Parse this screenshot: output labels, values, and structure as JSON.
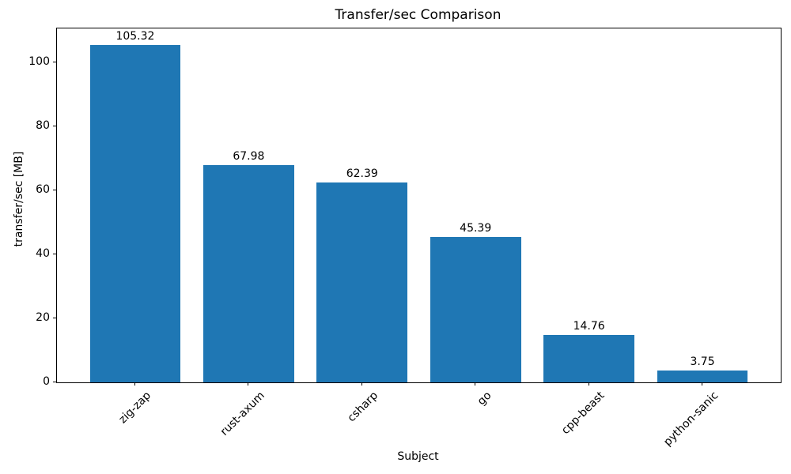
{
  "chart_data": {
    "type": "bar",
    "title": "Transfer/sec Comparison",
    "xlabel": "Subject",
    "ylabel": "transfer/sec [MB]",
    "categories": [
      "zig-zap",
      "rust-axum",
      "csharp",
      "go",
      "cpp-beast",
      "python-sanic"
    ],
    "values": [
      105.32,
      67.98,
      62.39,
      45.39,
      14.76,
      3.75
    ],
    "value_labels": [
      "105.32",
      "67.98",
      "62.39",
      "45.39",
      "14.76",
      "3.75"
    ],
    "yticks": [
      0,
      20,
      40,
      60,
      80,
      100
    ],
    "ytick_labels": [
      "0",
      "20",
      "40",
      "60",
      "80",
      "100"
    ],
    "ylim": [
      0,
      110.59
    ],
    "bar_color": "#1f77b4",
    "axis_color": "#000000",
    "text_color": "#000000",
    "grid": false,
    "legend": null
  }
}
